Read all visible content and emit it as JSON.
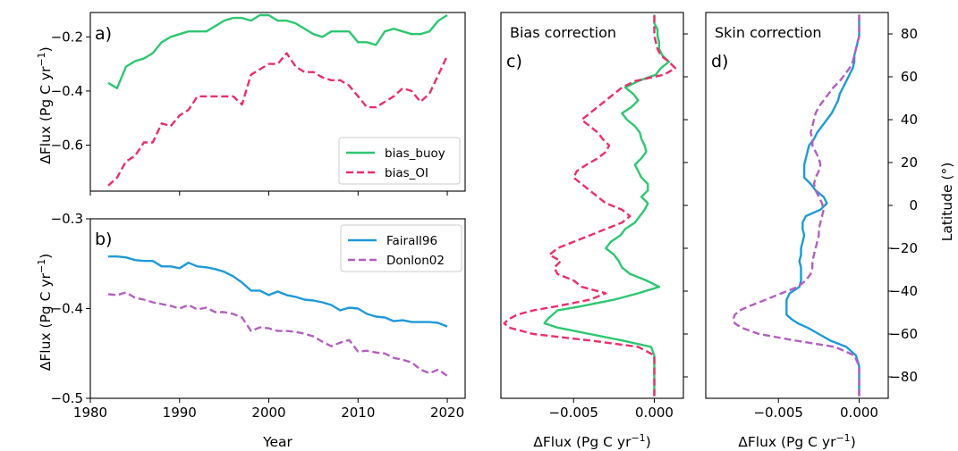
{
  "colors": {
    "bias_buoy": "#2ec771",
    "bias_OI": "#e8306a",
    "Fairall96": "#1f9ad6",
    "Donlon02": "#b35fc0"
  },
  "chart_data": [
    {
      "panel": "a)",
      "type": "line",
      "ylabel": "ΔFlux (Pg C yr⁻¹)",
      "xlim": [
        1980,
        2022
      ],
      "ylim": [
        -0.77,
        -0.11
      ],
      "xticks": [
        1980,
        1990,
        2000,
        2010,
        2020
      ],
      "yticks": [
        -0.6,
        -0.4,
        -0.2
      ],
      "ytick_labels": [
        "−0.6",
        "−0.4",
        "−0.2"
      ],
      "show_xticklabels": false,
      "legend": "bottom-right",
      "x": [
        1982,
        1983,
        1984,
        1985,
        1986,
        1987,
        1988,
        1989,
        1990,
        1991,
        1992,
        1993,
        1994,
        1995,
        1996,
        1997,
        1998,
        1999,
        2000,
        2001,
        2002,
        2003,
        2004,
        2005,
        2006,
        2007,
        2008,
        2009,
        2010,
        2011,
        2012,
        2013,
        2014,
        2015,
        2016,
        2017,
        2018,
        2019,
        2020
      ],
      "series": [
        {
          "name": "bias_buoy",
          "color_key": "bias_buoy",
          "dash": "solid",
          "values": [
            -0.37,
            -0.39,
            -0.31,
            -0.29,
            -0.28,
            -0.26,
            -0.22,
            -0.2,
            -0.19,
            -0.18,
            -0.18,
            -0.18,
            -0.16,
            -0.14,
            -0.13,
            -0.13,
            -0.14,
            -0.12,
            -0.12,
            -0.14,
            -0.14,
            -0.15,
            -0.17,
            -0.19,
            -0.2,
            -0.18,
            -0.18,
            -0.18,
            -0.22,
            -0.22,
            -0.23,
            -0.18,
            -0.17,
            -0.18,
            -0.19,
            -0.19,
            -0.18,
            -0.14,
            -0.12
          ]
        },
        {
          "name": "bias_OI",
          "color_key": "bias_OI",
          "dash": "dashed",
          "values": [
            -0.75,
            -0.72,
            -0.66,
            -0.64,
            -0.59,
            -0.59,
            -0.52,
            -0.53,
            -0.49,
            -0.47,
            -0.42,
            -0.42,
            -0.42,
            -0.42,
            -0.42,
            -0.45,
            -0.34,
            -0.32,
            -0.3,
            -0.3,
            -0.26,
            -0.31,
            -0.33,
            -0.33,
            -0.35,
            -0.36,
            -0.36,
            -0.38,
            -0.42,
            -0.46,
            -0.46,
            -0.44,
            -0.42,
            -0.39,
            -0.4,
            -0.44,
            -0.41,
            -0.34,
            -0.27
          ]
        }
      ]
    },
    {
      "panel": "b)",
      "type": "line",
      "xlabel": "Year",
      "ylabel": "ΔFlux (Pg C yr⁻¹)",
      "xlim": [
        1980,
        2022
      ],
      "ylim": [
        -0.5,
        -0.3
      ],
      "xticks": [
        1980,
        1990,
        2000,
        2010,
        2020
      ],
      "yticks": [
        -0.5,
        -0.4,
        -0.3
      ],
      "ytick_labels": [
        "−0.5",
        "−0.4",
        "−0.3"
      ],
      "show_xticklabels": true,
      "legend": "top-right",
      "x": [
        1982,
        1983,
        1984,
        1985,
        1986,
        1987,
        1988,
        1989,
        1990,
        1991,
        1992,
        1993,
        1994,
        1995,
        1996,
        1997,
        1998,
        1999,
        2000,
        2001,
        2002,
        2003,
        2004,
        2005,
        2006,
        2007,
        2008,
        2009,
        2010,
        2011,
        2012,
        2013,
        2014,
        2015,
        2016,
        2017,
        2018,
        2019,
        2020
      ],
      "series": [
        {
          "name": "Fairall96",
          "color_key": "Fairall96",
          "dash": "solid",
          "values": [
            -0.342,
            -0.342,
            -0.343,
            -0.346,
            -0.347,
            -0.347,
            -0.353,
            -0.353,
            -0.355,
            -0.349,
            -0.353,
            -0.354,
            -0.356,
            -0.359,
            -0.364,
            -0.371,
            -0.38,
            -0.38,
            -0.385,
            -0.381,
            -0.385,
            -0.387,
            -0.39,
            -0.391,
            -0.393,
            -0.396,
            -0.402,
            -0.399,
            -0.4,
            -0.406,
            -0.409,
            -0.41,
            -0.414,
            -0.413,
            -0.415,
            -0.415,
            -0.415,
            -0.416,
            -0.42
          ]
        },
        {
          "name": "Donlon02",
          "color_key": "Donlon02",
          "dash": "dashed",
          "values": [
            -0.384,
            -0.385,
            -0.382,
            -0.388,
            -0.39,
            -0.393,
            -0.395,
            -0.397,
            -0.4,
            -0.396,
            -0.401,
            -0.399,
            -0.404,
            -0.404,
            -0.406,
            -0.41,
            -0.425,
            -0.421,
            -0.422,
            -0.425,
            -0.425,
            -0.426,
            -0.428,
            -0.431,
            -0.437,
            -0.442,
            -0.438,
            -0.435,
            -0.448,
            -0.447,
            -0.449,
            -0.45,
            -0.455,
            -0.457,
            -0.46,
            -0.468,
            -0.472,
            -0.468,
            -0.475
          ]
        }
      ]
    },
    {
      "panel": "c)",
      "type": "line",
      "title": "Bias correction",
      "xlabel": "ΔFlux (Pg C yr⁻¹)",
      "xlim": [
        -0.0095,
        0.0018
      ],
      "ylim": [
        -90,
        90
      ],
      "xticks": [
        -0.005,
        0.0
      ],
      "xtick_labels": [
        "−0.005",
        "0.000"
      ],
      "yticks": [
        -80,
        -60,
        -40,
        -20,
        0,
        20,
        40,
        60,
        80
      ],
      "show_yticklabels": false,
      "y": [
        -89,
        -85,
        -80,
        -75,
        -70,
        -66,
        -63,
        -60,
        -57,
        -55,
        -53,
        -51,
        -49,
        -47,
        -44,
        -41,
        -38,
        -35,
        -32,
        -29,
        -26,
        -23,
        -20,
        -17,
        -14,
        -11,
        -8,
        -5,
        -2,
        1,
        4,
        7,
        10,
        13,
        16,
        19,
        22,
        25,
        28,
        31,
        34,
        37,
        40,
        43,
        46,
        49,
        52,
        55,
        58,
        61,
        64,
        67,
        70,
        73,
        76,
        79,
        82,
        85,
        89
      ],
      "series": [
        {
          "name": "bias_buoy",
          "color_key": "bias_buoy",
          "dash": "solid",
          "values": [
            0.0,
            0.0,
            0.0,
            0.0,
            0.0,
            -0.0002,
            -0.002,
            -0.004,
            -0.006,
            -0.0068,
            -0.0066,
            -0.0063,
            -0.006,
            -0.0045,
            -0.0025,
            -0.001,
            0.0003,
            -0.0005,
            -0.0015,
            -0.002,
            -0.0022,
            -0.0025,
            -0.003,
            -0.0027,
            -0.0021,
            -0.0018,
            -0.0012,
            -0.0009,
            -0.0006,
            -0.0004,
            -0.0008,
            -0.0004,
            -0.0004,
            -0.0008,
            -0.001,
            -0.0012,
            -0.0008,
            -0.0005,
            -0.0006,
            -0.0008,
            -0.0009,
            -0.0012,
            -0.0017,
            -0.002,
            -0.0014,
            -0.001,
            -0.0013,
            -0.0018,
            -0.001,
            0.0001,
            0.0004,
            0.0009,
            0.0005,
            0.0003,
            0.0003,
            0.0002,
            0.0002,
            0.0,
            0.0
          ]
        },
        {
          "name": "bias_OI",
          "color_key": "bias_OI",
          "dash": "dashed",
          "values": [
            0.0,
            0.0,
            0.0,
            0.0,
            0.0,
            -0.001,
            -0.004,
            -0.0075,
            -0.009,
            -0.0093,
            -0.009,
            -0.0085,
            -0.0075,
            -0.006,
            -0.004,
            -0.003,
            -0.0045,
            -0.005,
            -0.006,
            -0.0062,
            -0.0058,
            -0.0065,
            -0.006,
            -0.005,
            -0.004,
            -0.003,
            -0.002,
            -0.0015,
            -0.002,
            -0.003,
            -0.0035,
            -0.004,
            -0.0045,
            -0.005,
            -0.0048,
            -0.0042,
            -0.0035,
            -0.003,
            -0.0028,
            -0.0032,
            -0.0035,
            -0.004,
            -0.0045,
            -0.004,
            -0.0035,
            -0.003,
            -0.0025,
            -0.002,
            -0.0012,
            0.0006,
            0.0013,
            0.0009,
            0.0004,
            0.0002,
            0.0001,
            0.0,
            0.0,
            0.0,
            0.0
          ]
        }
      ]
    },
    {
      "panel": "d)",
      "type": "line",
      "title": "Skin correction",
      "xlabel": "ΔFlux (Pg C yr⁻¹)",
      "ylabel": "Latitude (°)",
      "xlim": [
        -0.0095,
        0.0018
      ],
      "ylim": [
        -90,
        90
      ],
      "xticks": [
        -0.005,
        0.0
      ],
      "xtick_labels": [
        "−0.005",
        "0.000"
      ],
      "yticks": [
        -80,
        -60,
        -40,
        -20,
        0,
        20,
        40,
        60,
        80
      ],
      "show_yticklabels": true,
      "y": [
        -89,
        -85,
        -80,
        -75,
        -70,
        -66,
        -63,
        -60,
        -57,
        -55,
        -53,
        -51,
        -49,
        -47,
        -44,
        -41,
        -38,
        -35,
        -32,
        -29,
        -26,
        -23,
        -20,
        -17,
        -14,
        -11,
        -8,
        -5,
        -2,
        1,
        4,
        7,
        10,
        13,
        16,
        19,
        22,
        25,
        28,
        31,
        34,
        37,
        40,
        43,
        46,
        49,
        52,
        55,
        58,
        61,
        64,
        67,
        70,
        73,
        76,
        79,
        82,
        85,
        89
      ],
      "series": [
        {
          "name": "Fairall96",
          "color_key": "Fairall96",
          "dash": "solid",
          "values": [
            0.0,
            0.0,
            0.0,
            0.0,
            -0.0002,
            -0.0008,
            -0.0018,
            -0.0025,
            -0.0032,
            -0.0038,
            -0.0042,
            -0.0045,
            -0.0045,
            -0.0045,
            -0.0045,
            -0.0043,
            -0.0037,
            -0.0036,
            -0.0036,
            -0.0036,
            -0.0037,
            -0.0036,
            -0.0036,
            -0.0035,
            -0.0034,
            -0.0035,
            -0.0035,
            -0.0033,
            -0.0024,
            -0.002,
            -0.0022,
            -0.0027,
            -0.003,
            -0.0034,
            -0.0034,
            -0.0034,
            -0.0033,
            -0.0032,
            -0.0031,
            -0.0028,
            -0.0026,
            -0.0023,
            -0.002,
            -0.0017,
            -0.0015,
            -0.0013,
            -0.0012,
            -0.001,
            -0.0008,
            -0.0006,
            -0.0004,
            -0.0003,
            -0.0003,
            -0.0002,
            -0.0001,
            0.0,
            0.0,
            0.0,
            0.0
          ]
        },
        {
          "name": "Donlon02",
          "color_key": "Donlon02",
          "dash": "dashed",
          "values": [
            0.0,
            0.0,
            0.0,
            0.0,
            -0.0003,
            -0.0015,
            -0.004,
            -0.0062,
            -0.0073,
            -0.0077,
            -0.0078,
            -0.0077,
            -0.0074,
            -0.0068,
            -0.0058,
            -0.0048,
            -0.0038,
            -0.0033,
            -0.003,
            -0.0029,
            -0.0029,
            -0.0028,
            -0.0027,
            -0.0026,
            -0.0025,
            -0.0025,
            -0.0024,
            -0.0023,
            -0.0022,
            -0.0023,
            -0.0025,
            -0.0027,
            -0.0028,
            -0.0027,
            -0.0025,
            -0.0024,
            -0.0025,
            -0.0027,
            -0.0029,
            -0.0029,
            -0.003,
            -0.0029,
            -0.0028,
            -0.0027,
            -0.0025,
            -0.0022,
            -0.0019,
            -0.0016,
            -0.0012,
            -0.0009,
            -0.0006,
            -0.0004,
            -0.0003,
            -0.0002,
            -0.0001,
            0.0,
            0.0,
            0.0,
            0.0
          ]
        }
      ]
    }
  ]
}
